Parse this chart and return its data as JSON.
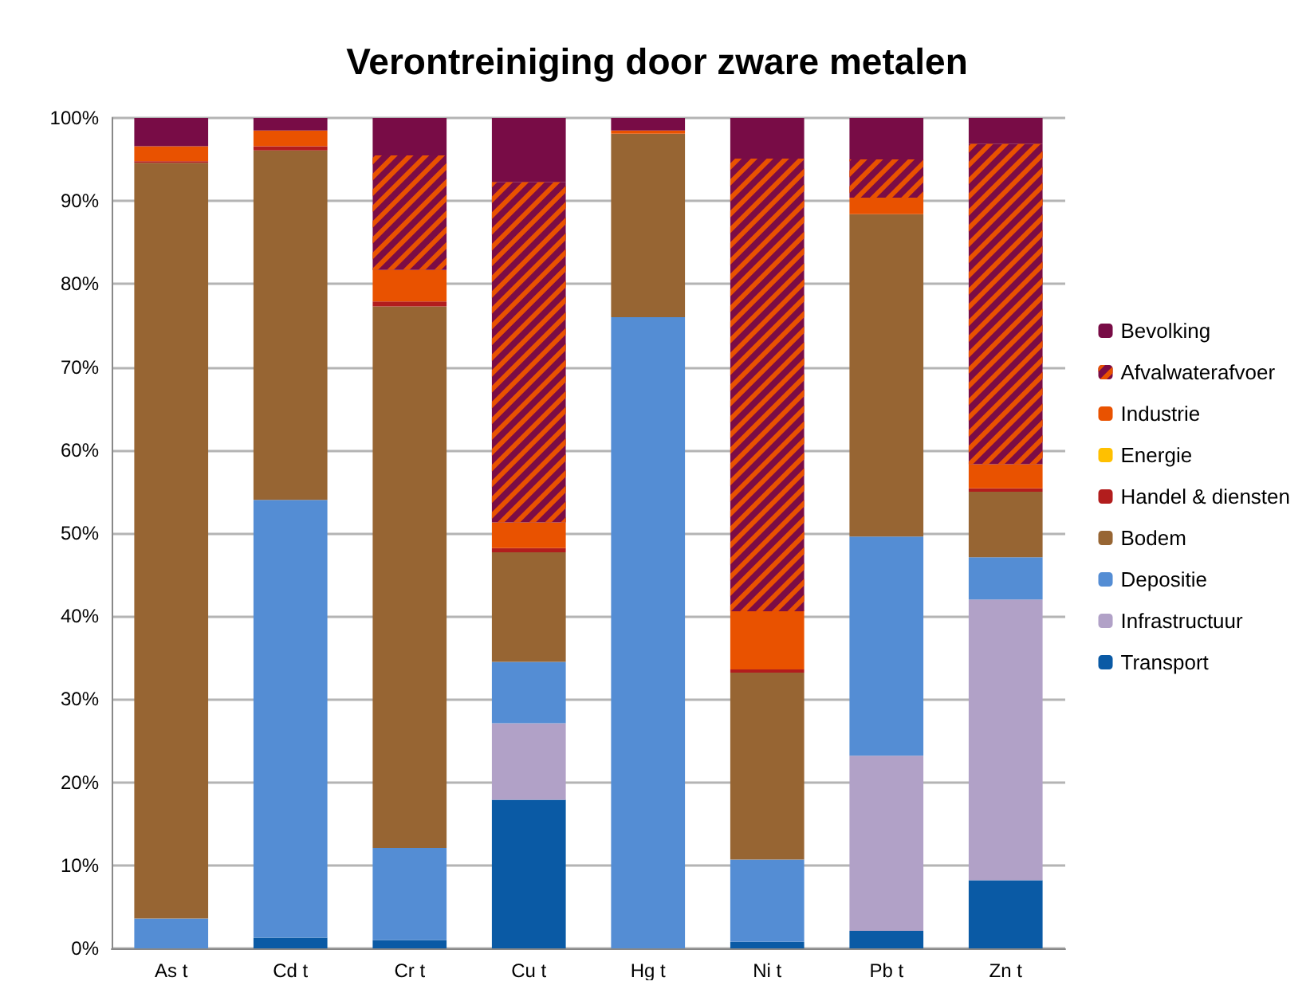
{
  "chart_data": {
    "type": "bar",
    "title": "Verontreiniging door zware metalen",
    "categories": [
      "As t",
      "Cd t",
      "Cr t",
      "Cu t",
      "Hg t",
      "Ni t",
      "Pb t",
      "Zn t"
    ],
    "stacked": true,
    "series": [
      {
        "name": "Transport",
        "color": "#0a5aa5",
        "values": [
          0,
          1.3,
          1.0,
          17.9,
          0,
          0.8,
          2.1,
          8.2
        ]
      },
      {
        "name": "Infrastructuur",
        "color": "#b1a1c7",
        "values": [
          0,
          0,
          0,
          9.2,
          0,
          0,
          21.1,
          33.8
        ]
      },
      {
        "name": "Depositie",
        "color": "#548dd4",
        "values": [
          3.6,
          52.7,
          11.1,
          7.4,
          76.0,
          9.9,
          26.4,
          5.1
        ]
      },
      {
        "name": "Bodem",
        "color": "#976533",
        "values": [
          91.0,
          42.1,
          65.2,
          13.2,
          22.1,
          22.5,
          38.8,
          7.9
        ]
      },
      {
        "name": "Handel & diensten",
        "color": "#b21d1d",
        "values": [
          0.2,
          0.5,
          0.6,
          0.5,
          0,
          0.4,
          0,
          0.4
        ]
      },
      {
        "name": "Energie",
        "color": "#ffc000",
        "values": [
          0,
          0,
          0,
          0,
          0,
          0,
          0,
          0
        ]
      },
      {
        "name": "Industrie",
        "color": "#e95200",
        "values": [
          1.8,
          1.9,
          3.8,
          3.1,
          0.4,
          7.0,
          2.0,
          2.9
        ]
      },
      {
        "name": "Afvalwaterafvoer",
        "color": "#7b0c45",
        "values": [
          0,
          0,
          13.8,
          41.0,
          0,
          54.5,
          4.6,
          38.6
        ]
      },
      {
        "name": "Bevolking",
        "color": "#780c46",
        "values": [
          3.4,
          1.5,
          4.5,
          7.7,
          1.5,
          4.9,
          5.0,
          3.1
        ]
      }
    ],
    "ylim": [
      0,
      100
    ],
    "yticks": [
      {
        "value": 0,
        "label": "0%"
      },
      {
        "value": 10,
        "label": "10%"
      },
      {
        "value": 20,
        "label": "20%"
      },
      {
        "value": 30,
        "label": "30%"
      },
      {
        "value": 40,
        "label": "40%"
      },
      {
        "value": 50,
        "label": "50%"
      },
      {
        "value": 60,
        "label": "60%"
      },
      {
        "value": 70,
        "label": "70%"
      },
      {
        "value": 80,
        "label": "80%"
      },
      {
        "value": 90,
        "label": "90%"
      },
      {
        "value": 100,
        "label": "100%"
      }
    ],
    "grid": "y",
    "legend": "right"
  }
}
